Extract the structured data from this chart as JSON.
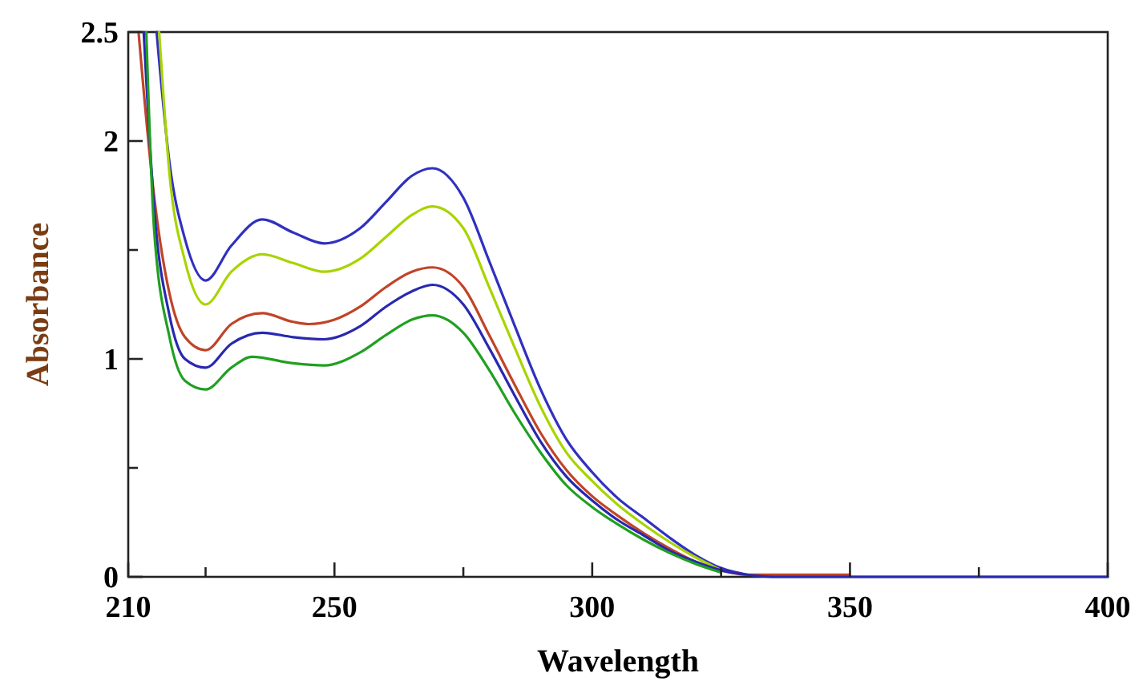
{
  "chart_data": {
    "type": "line",
    "xlabel": "Wavelength",
    "ylabel": "Absorbance",
    "xlim": [
      210,
      400
    ],
    "ylim": [
      0,
      2.5
    ],
    "xticks": [
      210,
      {
        "value": 225,
        "label": null
      },
      250,
      {
        "value": 275,
        "label": null
      },
      300,
      {
        "value": 325,
        "label": null
      },
      350,
      {
        "value": 375,
        "label": null
      },
      400
    ],
    "yticks": [
      0,
      {
        "value": 0.5,
        "label": null
      },
      1,
      {
        "value": 1.5,
        "label": null
      },
      2,
      2.5
    ],
    "grid": false,
    "series": [
      {
        "color": "#3030c0",
        "x": [
          215.5,
          218,
          221,
          225,
          230,
          236,
          242,
          248,
          255,
          260,
          265,
          269,
          275,
          280,
          285,
          290,
          295,
          300,
          305,
          310,
          315,
          320,
          325,
          330
        ],
        "values": [
          2.5,
          1.9,
          1.55,
          1.36,
          1.52,
          1.64,
          1.58,
          1.53,
          1.6,
          1.72,
          1.84,
          1.875,
          1.74,
          1.45,
          1.15,
          0.86,
          0.63,
          0.48,
          0.36,
          0.27,
          0.18,
          0.1,
          0.04,
          0.01
        ]
      },
      {
        "color": "#a8d400",
        "x": [
          216,
          218,
          221,
          225,
          230,
          236,
          242,
          248,
          255,
          260,
          265,
          269,
          275,
          280,
          285,
          290,
          295,
          300,
          305,
          310,
          315,
          320,
          325
        ],
        "values": [
          2.5,
          1.85,
          1.45,
          1.25,
          1.4,
          1.48,
          1.44,
          1.4,
          1.46,
          1.56,
          1.66,
          1.7,
          1.6,
          1.33,
          1.05,
          0.78,
          0.57,
          0.44,
          0.33,
          0.24,
          0.16,
          0.09,
          0.03
        ]
      },
      {
        "color": "#c04428",
        "x": [
          212,
          215,
          218,
          221,
          225,
          230,
          236,
          242,
          245,
          250,
          255,
          260,
          265,
          269,
          275,
          280,
          285,
          290,
          295,
          300,
          305,
          310,
          315,
          320,
          325,
          330,
          350
        ],
        "values": [
          2.5,
          1.75,
          1.3,
          1.1,
          1.04,
          1.16,
          1.21,
          1.17,
          1.16,
          1.18,
          1.24,
          1.33,
          1.4,
          1.42,
          1.33,
          1.11,
          0.88,
          0.66,
          0.49,
          0.37,
          0.28,
          0.2,
          0.13,
          0.07,
          0.03,
          0.01,
          0.01
        ]
      },
      {
        "color": "#2828b0",
        "x": [
          213,
          215,
          218,
          221,
          225,
          230,
          236,
          242,
          248,
          255,
          260,
          265,
          269,
          275,
          280,
          285,
          290,
          295,
          300,
          305,
          310,
          315,
          320,
          325,
          330,
          335,
          400
        ],
        "values": [
          2.5,
          1.7,
          1.2,
          1.0,
          0.96,
          1.07,
          1.12,
          1.1,
          1.09,
          1.15,
          1.24,
          1.31,
          1.34,
          1.25,
          1.05,
          0.83,
          0.62,
          0.46,
          0.35,
          0.26,
          0.19,
          0.12,
          0.07,
          0.03,
          0.01,
          0,
          0
        ]
      },
      {
        "color": "#20a020",
        "x": [
          213.5,
          215,
          218,
          221,
          225,
          230,
          234,
          242,
          248,
          255,
          260,
          265,
          269,
          275,
          280,
          285,
          290,
          295,
          300,
          305,
          310,
          315,
          320,
          325
        ],
        "values": [
          2.5,
          1.6,
          1.1,
          0.9,
          0.86,
          0.96,
          1.01,
          0.98,
          0.97,
          1.03,
          1.11,
          1.18,
          1.2,
          1.12,
          0.95,
          0.75,
          0.57,
          0.42,
          0.32,
          0.24,
          0.17,
          0.11,
          0.06,
          0.02
        ]
      }
    ]
  }
}
